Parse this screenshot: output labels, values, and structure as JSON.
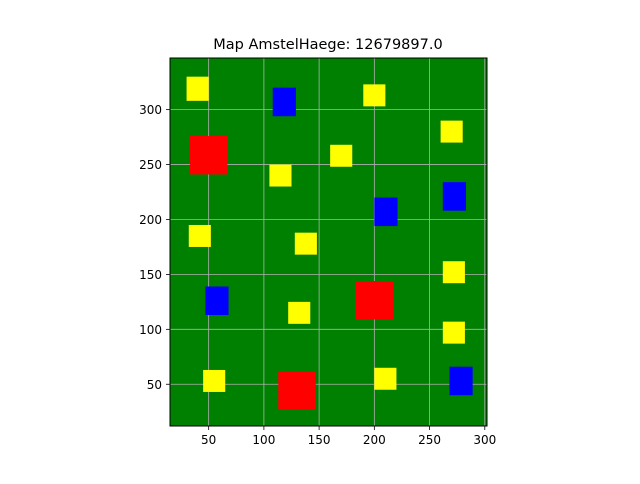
{
  "chart_data": {
    "type": "scatter",
    "title": "Map AmstelHaege: 12679897.0",
    "xlabel": "",
    "ylabel": "",
    "xlim": [
      15,
      302
    ],
    "ylim": [
      12,
      347
    ],
    "xticks": [
      50,
      100,
      150,
      200,
      250,
      300
    ],
    "yticks": [
      50,
      100,
      150,
      200,
      250,
      300
    ],
    "grid": true,
    "background_color": "#008000",
    "grid_color": "#b0b0b0",
    "colors": {
      "yellow": "#ffff00",
      "blue": "#0000ff",
      "red": "#ff0000"
    },
    "series": [
      {
        "color": "#ffff00",
        "houses": [
          {
            "x1": 30,
            "y1": 308,
            "x2": 50,
            "y2": 330
          },
          {
            "x1": 190,
            "y1": 303,
            "x2": 210,
            "y2": 323
          },
          {
            "x1": 260,
            "y1": 270,
            "x2": 280,
            "y2": 290
          },
          {
            "x1": 160,
            "y1": 248,
            "x2": 180,
            "y2": 268
          },
          {
            "x1": 105,
            "y1": 230,
            "x2": 125,
            "y2": 250
          },
          {
            "x1": 32,
            "y1": 175,
            "x2": 52,
            "y2": 195
          },
          {
            "x1": 128,
            "y1": 168,
            "x2": 148,
            "y2": 188
          },
          {
            "x1": 262,
            "y1": 142,
            "x2": 282,
            "y2": 162
          },
          {
            "x1": 122,
            "y1": 105,
            "x2": 142,
            "y2": 125
          },
          {
            "x1": 262,
            "y1": 87,
            "x2": 282,
            "y2": 107
          },
          {
            "x1": 45,
            "y1": 43,
            "x2": 65,
            "y2": 63
          },
          {
            "x1": 200,
            "y1": 45,
            "x2": 220,
            "y2": 65
          }
        ]
      },
      {
        "color": "#0000ff",
        "houses": [
          {
            "x1": 108,
            "y1": 294,
            "x2": 129,
            "y2": 320
          },
          {
            "x1": 200,
            "y1": 194,
            "x2": 221,
            "y2": 220
          },
          {
            "x1": 262,
            "y1": 208,
            "x2": 283,
            "y2": 234
          },
          {
            "x1": 47,
            "y1": 113,
            "x2": 68,
            "y2": 139
          },
          {
            "x1": 268,
            "y1": 40,
            "x2": 289,
            "y2": 66
          }
        ]
      },
      {
        "color": "#ff0000",
        "houses": [
          {
            "x1": 33,
            "y1": 241,
            "x2": 67,
            "y2": 276
          },
          {
            "x1": 183,
            "y1": 109,
            "x2": 217,
            "y2": 144
          },
          {
            "x1": 113,
            "y1": 27,
            "x2": 147,
            "y2": 62
          }
        ]
      }
    ]
  }
}
